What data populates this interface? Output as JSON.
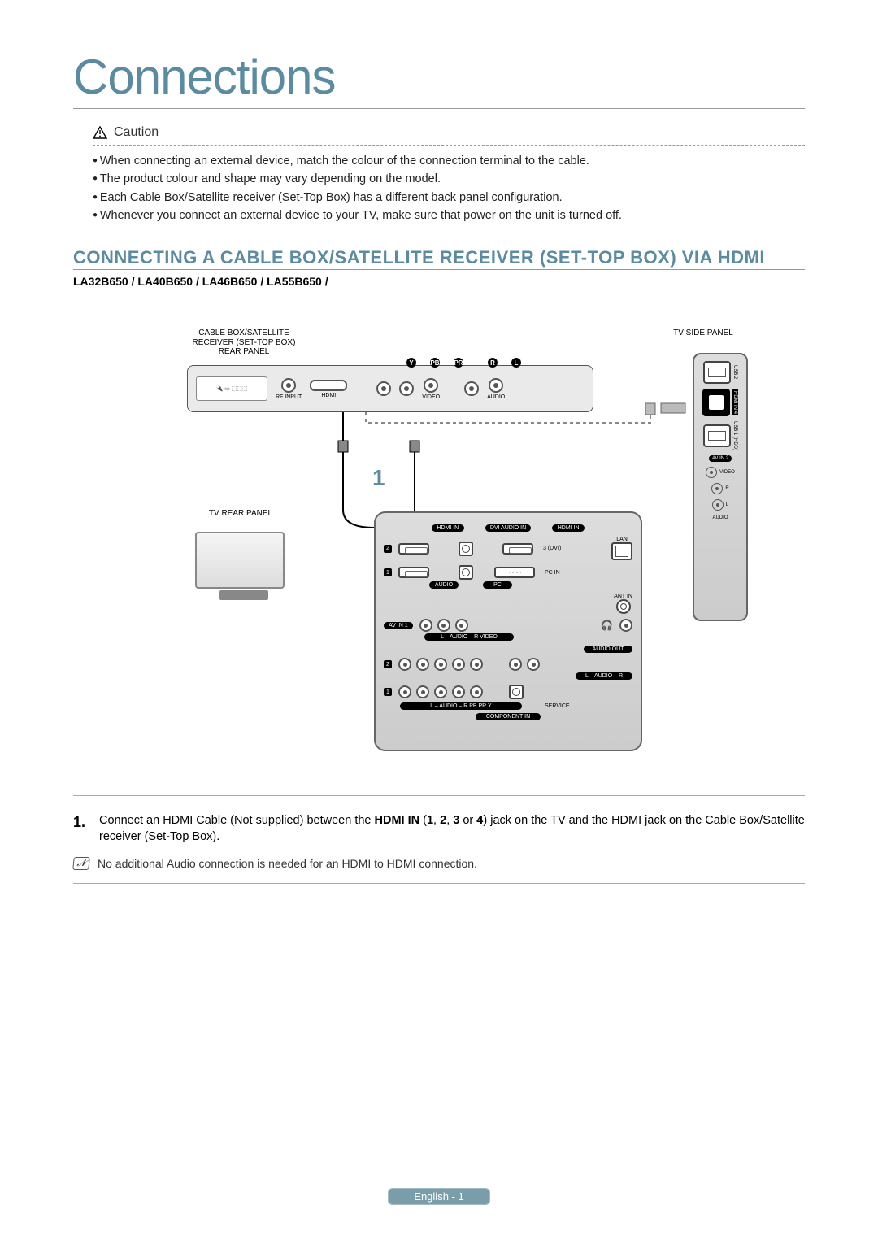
{
  "page_title": "Connections",
  "caution": {
    "label": "Caution",
    "items": [
      "When connecting an external device, match the colour of the connection terminal to the cable.",
      "The product colour and shape may vary depending on the model.",
      "Each Cable Box/Satellite receiver (Set-Top Box) has a different back panel configuration.",
      "Whenever you connect an external device to your TV, make sure that power on the unit is turned off."
    ]
  },
  "section_heading": "CONNECTING A CABLE BOX/SATELLITE RECEIVER (SET-TOP BOX) VIA HDMI",
  "models": "LA32B650 / LA40B650 / LA46B650 / LA55B650 /",
  "diagram": {
    "labels": {
      "stb_title": "CABLE BOX/SATELLITE\nRECEIVER (SET-TOP BOX)\nREAR PANEL",
      "tv_side": "TV SIDE PANEL",
      "tv_rear": "TV REAR PANEL",
      "rf_input": "RF INPUT",
      "hdmi": "HDMI",
      "video": "VIDEO",
      "audio": "AUDIO",
      "cable_number": "1",
      "stb_tags": [
        "Y",
        "PB",
        "PR",
        "R",
        "L"
      ]
    },
    "tv_rear_panel": {
      "top_pills": [
        "HDMI IN",
        "DVI AUDIO IN",
        "HDMI IN"
      ],
      "hdmi_numbers": [
        "2",
        "1"
      ],
      "hdmi3_label": "3 (DVI)",
      "lan_label": "LAN",
      "pc_in": "PC IN",
      "audio_pill": "AUDIO",
      "pc_pill": "PC",
      "ant_in": "ANT IN",
      "av_in1": "AV IN 1",
      "av_labels": "L – AUDIO – R     VIDEO",
      "audio_out": "AUDIO OUT",
      "audio_out_lr": "L – AUDIO – R",
      "component_numbers": [
        "2",
        "1"
      ],
      "component_in": "COMPONENT IN",
      "component_labels": "L – AUDIO – R     PB     PR     Y",
      "service": "SERVICE",
      "headphone": "♫"
    },
    "side_panel": {
      "usb2": "USB 2",
      "hdmi_in4": "HDMI IN 4",
      "usb1": "USB 1 (HDD)",
      "av_in2": "AV IN 2",
      "video": "VIDEO",
      "audio_r": "R",
      "audio_l": "L",
      "audio": "AUDIO"
    },
    "colors": {
      "accent": "#5a8ba0",
      "panel_border": "#666666",
      "panel_bg_top": "#dddddd",
      "panel_bg_bottom": "#cccccc",
      "cable_dashed": "#999999",
      "text": "#000000"
    }
  },
  "step": {
    "number": "1.",
    "pre": "Connect an HDMI Cable (Not supplied) between the ",
    "bold1": "HDMI IN",
    "mid1": " (",
    "b1": "1",
    "c1": ", ",
    "b2": "2",
    "c2": ", ",
    "b3": "3",
    "c3": " or ",
    "b4": "4",
    "mid2": ") jack on the TV and the HDMI jack on the Cable Box/Satellite receiver (Set-Top Box)."
  },
  "note": "No additional Audio connection is needed for an HDMI to HDMI connection.",
  "footer": "English - 1"
}
